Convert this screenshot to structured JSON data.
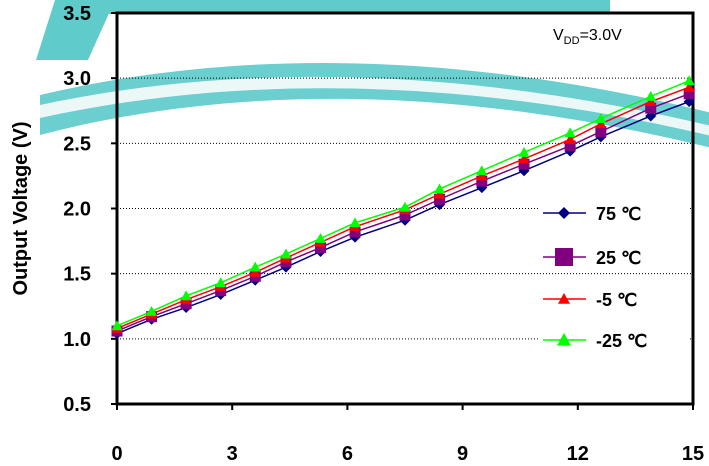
{
  "chart_data": {
    "type": "line",
    "ylabel": "Output Voltage (V)",
    "annotation": {
      "main": "V",
      "sub": "DD",
      "rest": "=3.0V"
    },
    "xlim": [
      0,
      15
    ],
    "ylim": [
      0.5,
      3.5
    ],
    "x_ticks": [
      "0",
      "3",
      "6",
      "9",
      "12",
      "15"
    ],
    "y_ticks": [
      "0.5",
      "1.0",
      "1.5",
      "2.0",
      "2.5",
      "3.0",
      "3.5"
    ],
    "grid": "horizontal dotted",
    "legend_position": "right",
    "x": [
      0,
      0.9,
      1.8,
      2.7,
      3.6,
      4.4,
      5.3,
      6.2,
      7.5,
      8.4,
      9.5,
      10.6,
      11.8,
      12.6,
      13.9,
      14.9
    ],
    "series": [
      {
        "name": "75 ℃",
        "marker": "diamond",
        "color": "#000080",
        "values": [
          1.04,
          1.15,
          1.24,
          1.34,
          1.45,
          1.55,
          1.67,
          1.78,
          1.91,
          2.03,
          2.16,
          2.29,
          2.44,
          2.55,
          2.71,
          2.82
        ]
      },
      {
        "name": "25 ℃",
        "marker": "square",
        "color": "#800080",
        "values": [
          1.06,
          1.17,
          1.27,
          1.37,
          1.48,
          1.59,
          1.7,
          1.82,
          1.95,
          2.07,
          2.21,
          2.34,
          2.48,
          2.59,
          2.77,
          2.88
        ]
      },
      {
        "name": "-5 ℃",
        "marker": "triangle",
        "color": "#ff0000",
        "values": [
          1.08,
          1.19,
          1.3,
          1.4,
          1.51,
          1.62,
          1.74,
          1.86,
          1.99,
          2.11,
          2.25,
          2.38,
          2.53,
          2.65,
          2.82,
          2.93
        ]
      },
      {
        "name": "-25 ℃",
        "marker": "triangle",
        "color": "#00ff00",
        "values": [
          1.1,
          1.21,
          1.33,
          1.43,
          1.55,
          1.65,
          1.77,
          1.89,
          2.01,
          2.15,
          2.29,
          2.43,
          2.58,
          2.69,
          2.86,
          2.98
        ]
      }
    ]
  }
}
